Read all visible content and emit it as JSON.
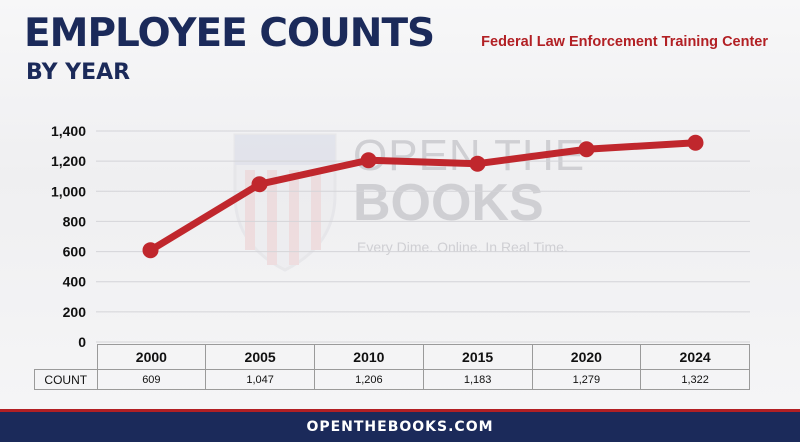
{
  "header": {
    "title": "EMPLOYEE COUNTS",
    "subtitle": "BY YEAR",
    "agency": "Federal Law Enforcement Training Center"
  },
  "watermark": {
    "line1": "OPEN THE",
    "line2": "BOOKS",
    "tagline": "Every Dime. Online. In Real Time."
  },
  "colors": {
    "navy": "#1b2a5a",
    "accent_red": "#b22024",
    "line": "#c0272d"
  },
  "chart_data": {
    "type": "line",
    "categories": [
      "2000",
      "2005",
      "2010",
      "2015",
      "2020",
      "2024"
    ],
    "values": [
      609,
      1047,
      1206,
      1183,
      1279,
      1322
    ],
    "ylim": [
      0,
      1400
    ],
    "yticks": [
      "0",
      "200",
      "400",
      "600",
      "800",
      "1,000",
      "1,200",
      "1,400"
    ],
    "grid": true,
    "table": {
      "row_label": "COUNT",
      "values": [
        "609",
        "1,047",
        "1,206",
        "1,183",
        "1,279",
        "1,322"
      ]
    }
  },
  "footer": {
    "text": "OPENTHEBOOKS.COM"
  }
}
